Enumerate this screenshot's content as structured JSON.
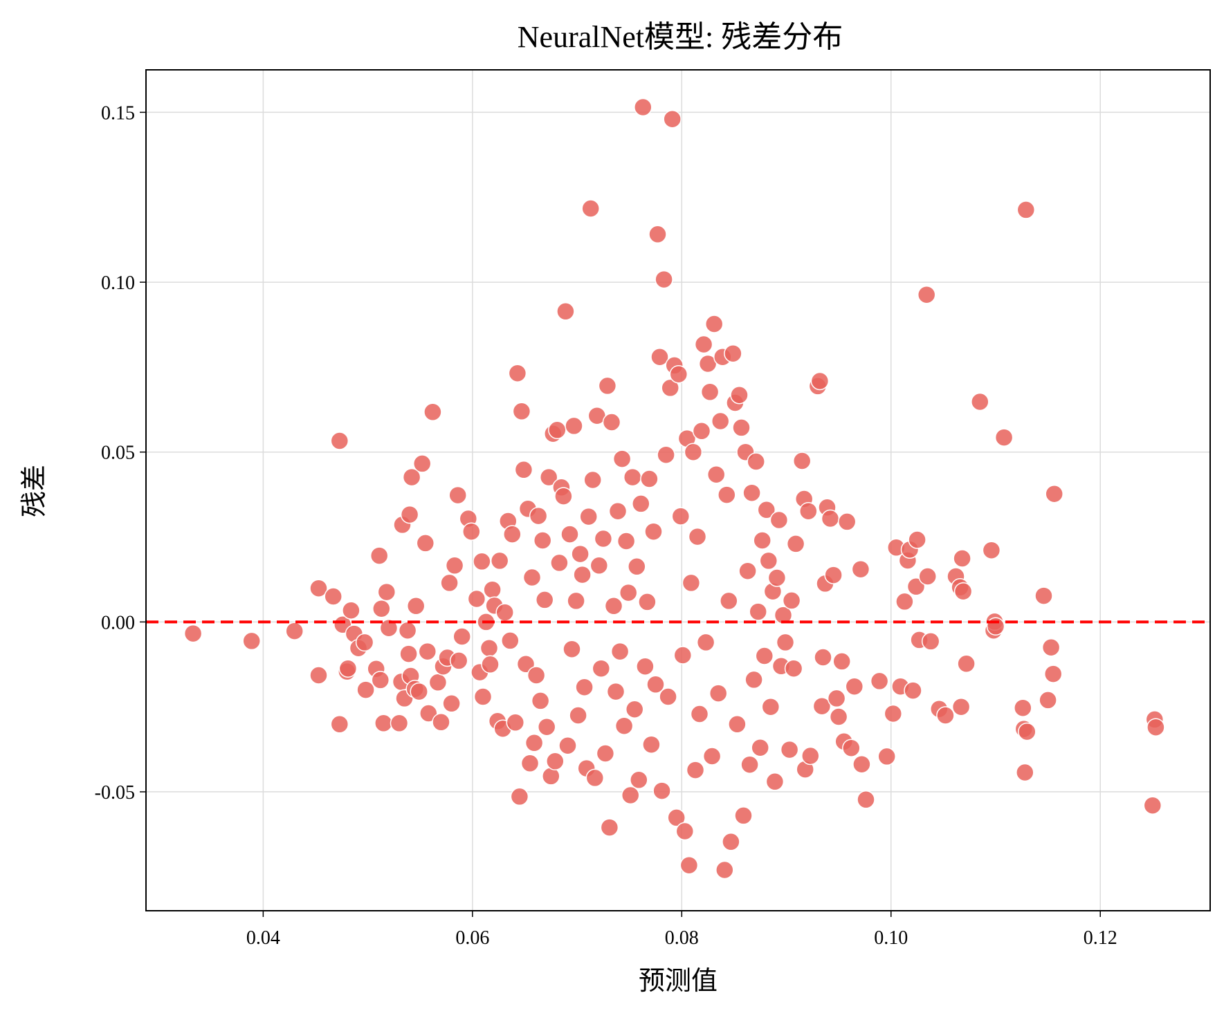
{
  "chart_data": {
    "type": "scatter",
    "title": "NeuralNet模型: 残差分布",
    "xlabel": "预测值",
    "ylabel": "残差",
    "xlim": [
      0.0288,
      0.1305
    ],
    "ylim": [
      -0.085,
      0.1625
    ],
    "xticks": [
      0.04,
      0.06,
      0.08,
      0.1,
      0.12
    ],
    "xtick_labels": [
      "0.04",
      "0.06",
      "0.08",
      "0.10",
      "0.12"
    ],
    "yticks": [
      0.15,
      0.1,
      0.05,
      0.0,
      -0.05
    ],
    "ytick_labels": [
      "0.15",
      "0.10",
      "0.05",
      "0.00",
      "-0.05"
    ],
    "grid": true,
    "reference_line": {
      "y": 0.0,
      "style": "dashed",
      "color": "#ff0000"
    },
    "marker_color": "#e8625a",
    "marker_edge_color": "#ffffff",
    "points": [
      [
        0.0333,
        -0.0034
      ],
      [
        0.0389,
        -0.0056
      ],
      [
        0.043,
        -0.0027
      ],
      [
        0.0453,
        0.0099
      ],
      [
        0.0453,
        -0.0157
      ],
      [
        0.0467,
        0.0075
      ],
      [
        0.0473,
        0.0533
      ],
      [
        0.0473,
        -0.0301
      ],
      [
        0.0476,
        -0.0008
      ],
      [
        0.048,
        -0.0146
      ],
      [
        0.0481,
        -0.0137
      ],
      [
        0.0484,
        0.0034
      ],
      [
        0.0487,
        -0.0035
      ],
      [
        0.0491,
        -0.0077
      ],
      [
        0.0497,
        -0.006
      ],
      [
        0.0498,
        -0.02
      ],
      [
        0.0508,
        -0.0138
      ],
      [
        0.0511,
        0.0195
      ],
      [
        0.0512,
        -0.0171
      ],
      [
        0.0513,
        0.0039
      ],
      [
        0.0515,
        -0.0298
      ],
      [
        0.0518,
        0.0088
      ],
      [
        0.052,
        -0.0018
      ],
      [
        0.053,
        -0.0298
      ],
      [
        0.0532,
        -0.0176
      ],
      [
        0.0533,
        0.0286
      ],
      [
        0.0535,
        -0.0225
      ],
      [
        0.0538,
        -0.0025
      ],
      [
        0.0539,
        -0.0094
      ],
      [
        0.054,
        0.0316
      ],
      [
        0.0541,
        -0.0159
      ],
      [
        0.0542,
        0.0426
      ],
      [
        0.0545,
        -0.0197
      ],
      [
        0.0546,
        0.0047
      ],
      [
        0.0549,
        -0.0205
      ],
      [
        0.0552,
        0.0466
      ],
      [
        0.0555,
        0.0232
      ],
      [
        0.0557,
        -0.0087
      ],
      [
        0.0558,
        -0.0269
      ],
      [
        0.0562,
        0.0618
      ],
      [
        0.0567,
        -0.0178
      ],
      [
        0.057,
        -0.0295
      ],
      [
        0.0572,
        -0.0131
      ],
      [
        0.0576,
        -0.0105
      ],
      [
        0.0578,
        0.0115
      ],
      [
        0.058,
        -0.024
      ],
      [
        0.0583,
        0.0166
      ],
      [
        0.0586,
        0.0373
      ],
      [
        0.0587,
        -0.0114
      ],
      [
        0.059,
        -0.0043
      ],
      [
        0.0596,
        0.0304
      ],
      [
        0.0599,
        0.0266
      ],
      [
        0.0604,
        0.0068
      ],
      [
        0.0607,
        -0.0148
      ],
      [
        0.0609,
        0.0178
      ],
      [
        0.061,
        -0.022
      ],
      [
        0.0613,
        0.0
      ],
      [
        0.0616,
        -0.0077
      ],
      [
        0.0617,
        -0.0125
      ],
      [
        0.0619,
        0.0095
      ],
      [
        0.0621,
        0.0048
      ],
      [
        0.0624,
        -0.0292
      ],
      [
        0.0626,
        0.018
      ],
      [
        0.0629,
        -0.0314
      ],
      [
        0.0631,
        0.0028
      ],
      [
        0.0634,
        0.0297
      ],
      [
        0.0636,
        -0.0055
      ],
      [
        0.0638,
        0.0258
      ],
      [
        0.0641,
        -0.0296
      ],
      [
        0.0643,
        0.0732
      ],
      [
        0.0645,
        -0.0514
      ],
      [
        0.0647,
        0.062
      ],
      [
        0.0649,
        0.0448
      ],
      [
        0.0651,
        -0.0124
      ],
      [
        0.0653,
        0.0333
      ],
      [
        0.0655,
        -0.0416
      ],
      [
        0.0657,
        0.0131
      ],
      [
        0.0659,
        -0.0356
      ],
      [
        0.0661,
        -0.0157
      ],
      [
        0.0663,
        0.0312
      ],
      [
        0.0665,
        -0.0232
      ],
      [
        0.0667,
        0.024
      ],
      [
        0.0669,
        0.0065
      ],
      [
        0.0671,
        -0.0309
      ],
      [
        0.0673,
        0.0426
      ],
      [
        0.0675,
        -0.0454
      ],
      [
        0.0677,
        0.0554
      ],
      [
        0.0679,
        -0.041
      ],
      [
        0.0681,
        0.0565
      ],
      [
        0.0683,
        0.0174
      ],
      [
        0.0685,
        0.0396
      ],
      [
        0.0687,
        0.037
      ],
      [
        0.0689,
        0.0914
      ],
      [
        0.0691,
        -0.0364
      ],
      [
        0.0693,
        0.0258
      ],
      [
        0.0695,
        -0.008
      ],
      [
        0.0697,
        0.0577
      ],
      [
        0.0699,
        0.0062
      ],
      [
        0.0701,
        -0.0275
      ],
      [
        0.0703,
        0.02
      ],
      [
        0.0705,
        0.0139
      ],
      [
        0.0707,
        -0.0192
      ],
      [
        0.0709,
        -0.0431
      ],
      [
        0.0711,
        0.031
      ],
      [
        0.0713,
        0.1217
      ],
      [
        0.0715,
        0.0418
      ],
      [
        0.0717,
        -0.0459
      ],
      [
        0.0719,
        0.0607
      ],
      [
        0.0721,
        0.0166
      ],
      [
        0.0723,
        -0.0137
      ],
      [
        0.0725,
        0.0245
      ],
      [
        0.0727,
        -0.0387
      ],
      [
        0.0729,
        0.0695
      ],
      [
        0.0731,
        -0.0605
      ],
      [
        0.0733,
        0.0588
      ],
      [
        0.0735,
        0.0047
      ],
      [
        0.0737,
        -0.0205
      ],
      [
        0.0739,
        0.0326
      ],
      [
        0.0741,
        -0.0087
      ],
      [
        0.0743,
        0.048
      ],
      [
        0.0745,
        -0.0306
      ],
      [
        0.0747,
        0.0238
      ],
      [
        0.0749,
        0.0086
      ],
      [
        0.0751,
        -0.051
      ],
      [
        0.0753,
        0.0426
      ],
      [
        0.0755,
        -0.0257
      ],
      [
        0.0757,
        0.0163
      ],
      [
        0.0759,
        -0.0465
      ],
      [
        0.0761,
        0.0348
      ],
      [
        0.0763,
        0.1515
      ],
      [
        0.0765,
        -0.0131
      ],
      [
        0.0767,
        0.0059
      ],
      [
        0.0769,
        0.0421
      ],
      [
        0.0771,
        -0.0361
      ],
      [
        0.0773,
        0.0266
      ],
      [
        0.0775,
        -0.0184
      ],
      [
        0.0777,
        0.1141
      ],
      [
        0.0779,
        0.078
      ],
      [
        0.0781,
        -0.0497
      ],
      [
        0.0783,
        0.1008
      ],
      [
        0.0785,
        0.0492
      ],
      [
        0.0787,
        -0.022
      ],
      [
        0.0789,
        0.0689
      ],
      [
        0.0791,
        0.148
      ],
      [
        0.0793,
        0.0755
      ],
      [
        0.0795,
        -0.0576
      ],
      [
        0.0797,
        0.0729
      ],
      [
        0.0799,
        0.0311
      ],
      [
        0.0801,
        -0.0098
      ],
      [
        0.0803,
        -0.0616
      ],
      [
        0.0805,
        0.054
      ],
      [
        0.0807,
        -0.0716
      ],
      [
        0.0809,
        0.0115
      ],
      [
        0.0811,
        0.05
      ],
      [
        0.0813,
        -0.0436
      ],
      [
        0.0815,
        0.0251
      ],
      [
        0.0817,
        -0.0271
      ],
      [
        0.0819,
        0.0562
      ],
      [
        0.0821,
        0.0817
      ],
      [
        0.0823,
        -0.006
      ],
      [
        0.0825,
        0.076
      ],
      [
        0.0827,
        0.0677
      ],
      [
        0.0829,
        -0.0395
      ],
      [
        0.0831,
        0.0877
      ],
      [
        0.0833,
        0.0434
      ],
      [
        0.0835,
        -0.021
      ],
      [
        0.0837,
        0.0591
      ],
      [
        0.0839,
        0.078
      ],
      [
        0.0841,
        -0.073
      ],
      [
        0.0843,
        0.0374
      ],
      [
        0.0845,
        0.0062
      ],
      [
        0.0847,
        -0.0647
      ],
      [
        0.0849,
        0.079
      ],
      [
        0.0851,
        0.0645
      ],
      [
        0.0853,
        -0.0301
      ],
      [
        0.0855,
        0.0668
      ],
      [
        0.0857,
        0.0572
      ],
      [
        0.0859,
        -0.057
      ],
      [
        0.0861,
        0.05
      ],
      [
        0.0863,
        0.015
      ],
      [
        0.0865,
        -0.042
      ],
      [
        0.0867,
        0.038
      ],
      [
        0.0869,
        -0.017
      ],
      [
        0.0871,
        0.0472
      ],
      [
        0.0873,
        0.003
      ],
      [
        0.0875,
        -0.037
      ],
      [
        0.0877,
        0.024
      ],
      [
        0.0879,
        -0.01
      ],
      [
        0.0881,
        0.033
      ],
      [
        0.0883,
        0.018
      ],
      [
        0.0885,
        -0.025
      ],
      [
        0.0887,
        0.009
      ],
      [
        0.0889,
        -0.047
      ],
      [
        0.0891,
        0.013
      ],
      [
        0.0893,
        0.03
      ],
      [
        0.0895,
        -0.013
      ],
      [
        0.0897,
        0.002
      ],
      [
        0.0899,
        -0.006
      ],
      [
        0.0903,
        -0.0376
      ],
      [
        0.0905,
        0.0063
      ],
      [
        0.0907,
        -0.0137
      ],
      [
        0.0909,
        0.023
      ],
      [
        0.0915,
        0.0474
      ],
      [
        0.0917,
        0.0362
      ],
      [
        0.0918,
        -0.0434
      ],
      [
        0.0921,
        0.0326
      ],
      [
        0.0923,
        -0.0394
      ],
      [
        0.093,
        0.0694
      ],
      [
        0.0932,
        0.0709
      ],
      [
        0.0934,
        -0.0248
      ],
      [
        0.0935,
        -0.0104
      ],
      [
        0.0937,
        0.0113
      ],
      [
        0.0939,
        0.0337
      ],
      [
        0.0942,
        0.0304
      ],
      [
        0.0945,
        0.0138
      ],
      [
        0.0948,
        -0.0225
      ],
      [
        0.095,
        -0.0279
      ],
      [
        0.0953,
        -0.0116
      ],
      [
        0.0955,
        -0.0352
      ],
      [
        0.0958,
        0.0295
      ],
      [
        0.0962,
        -0.0371
      ],
      [
        0.0965,
        -0.019
      ],
      [
        0.0971,
        0.0155
      ],
      [
        0.0972,
        -0.0419
      ],
      [
        0.0976,
        -0.0523
      ],
      [
        0.0989,
        -0.0174
      ],
      [
        0.0996,
        -0.0396
      ],
      [
        0.1002,
        -0.027
      ],
      [
        0.1005,
        0.0219
      ],
      [
        0.1009,
        -0.019
      ],
      [
        0.1013,
        0.006
      ],
      [
        0.1016,
        0.0181
      ],
      [
        0.1018,
        0.0213
      ],
      [
        0.1021,
        -0.0202
      ],
      [
        0.1024,
        0.0104
      ],
      [
        0.1025,
        0.0242
      ],
      [
        0.1027,
        -0.0053
      ],
      [
        0.1034,
        0.0963
      ],
      [
        0.1035,
        0.0134
      ],
      [
        0.1038,
        -0.0057
      ],
      [
        0.1046,
        -0.0256
      ],
      [
        0.1052,
        -0.0275
      ],
      [
        0.1062,
        0.0134
      ],
      [
        0.1066,
        0.0102
      ],
      [
        0.1067,
        -0.025
      ],
      [
        0.1068,
        0.0187
      ],
      [
        0.1069,
        0.009
      ],
      [
        0.1072,
        -0.0123
      ],
      [
        0.1085,
        0.0648
      ],
      [
        0.1096,
        0.0211
      ],
      [
        0.1098,
        -0.0025
      ],
      [
        0.1099,
        0.0001
      ],
      [
        0.11,
        -0.0013
      ],
      [
        0.1108,
        0.0543
      ],
      [
        0.1126,
        -0.0253
      ],
      [
        0.1127,
        -0.0315
      ],
      [
        0.1128,
        -0.0443
      ],
      [
        0.1129,
        0.1213
      ],
      [
        0.113,
        -0.0323
      ],
      [
        0.1146,
        0.0077
      ],
      [
        0.115,
        -0.023
      ],
      [
        0.1153,
        -0.0075
      ],
      [
        0.1155,
        -0.0153
      ],
      [
        0.1156,
        0.0377
      ],
      [
        0.125,
        -0.054
      ],
      [
        0.1252,
        -0.0287
      ],
      [
        0.1253,
        -0.031
      ]
    ]
  }
}
